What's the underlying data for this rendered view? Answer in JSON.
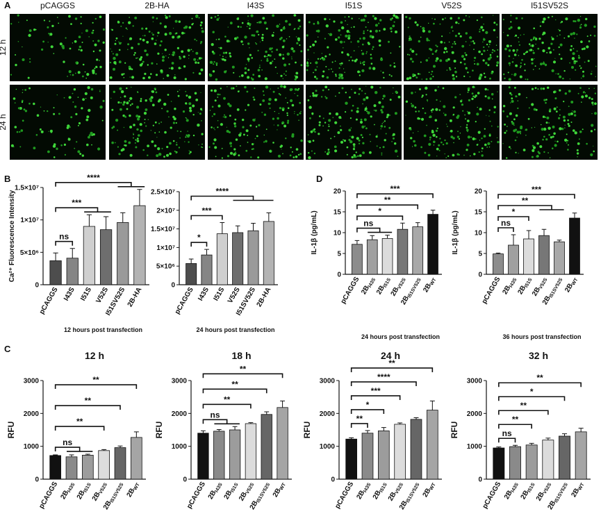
{
  "panel_labels": [
    "A",
    "B",
    "C",
    "D"
  ],
  "panel_a": {
    "columns": [
      "pCAGGS",
      "2B-HA",
      "I43S",
      "I51S",
      "V52S",
      "I51SV52S"
    ],
    "rows": [
      "12 h",
      "24 h"
    ]
  },
  "chart_data": [
    {
      "type": "bar",
      "xlabel": "12 hours post transfection",
      "ylabel": "Ca²⁺ Fluorescence Intensity",
      "categories": [
        "pCAGGS",
        "I43S",
        "I51S",
        "V52S",
        "I51SV52S",
        "2B-HA"
      ],
      "values": [
        3700000,
        4100000,
        9000000,
        8500000,
        9600000,
        12200000
      ],
      "errors": [
        1200000,
        1500000,
        1800000,
        2000000,
        1500000,
        2500000
      ],
      "colors": [
        "#4d4d4d",
        "#858585",
        "#cfcfcf",
        "#6e6e6e",
        "#9a9a9a",
        "#b3b3b3"
      ],
      "ylim": [
        0,
        15000000
      ],
      "yticks": [
        0,
        {
          "value": 5000000,
          "label": "5×10⁶"
        },
        {
          "value": 10000000,
          "label": "1×10⁷"
        },
        {
          "value": 15000000,
          "label": "1.5×10⁷"
        }
      ],
      "significance": [
        {
          "label": "ns",
          "from": "pCAGGS",
          "to": [
            "I43S"
          ]
        },
        {
          "label": "***",
          "from": "pCAGGS",
          "to": [
            "I51S",
            "V52S"
          ]
        },
        {
          "label": "****",
          "from": "pCAGGS",
          "to": [
            "I51SV52S",
            "2B-HA"
          ]
        }
      ]
    },
    {
      "type": "bar",
      "xlabel": "24 hours post transfection",
      "categories": [
        "pCAGGS",
        "I43S",
        "I51S",
        "V52S",
        "I51SV52S",
        "2B-HA"
      ],
      "values": [
        5700000,
        8000000,
        13700000,
        14000000,
        14500000,
        17000000
      ],
      "errors": [
        1200000,
        1500000,
        3000000,
        1800000,
        2000000,
        2300000
      ],
      "colors": [
        "#4d4d4d",
        "#858585",
        "#cfcfcf",
        "#6e6e6e",
        "#9a9a9a",
        "#b3b3b3"
      ],
      "ylim": [
        0,
        25000000
      ],
      "yticks": [
        0,
        {
          "value": 5000000,
          "label": "5×10⁶"
        },
        {
          "value": 10000000,
          "label": "1×10⁷"
        },
        {
          "value": 15000000,
          "label": "1.5×10⁷"
        },
        {
          "value": 20000000,
          "label": "2×10⁷"
        },
        {
          "value": 25000000,
          "label": "2.5×10⁷"
        }
      ],
      "significance": [
        {
          "label": "*",
          "from": "pCAGGS",
          "to": [
            "I43S"
          ]
        },
        {
          "label": "***",
          "from": "pCAGGS",
          "to": [
            "I51S"
          ]
        },
        {
          "label": "****",
          "from": "pCAGGS",
          "to": [
            "V52S",
            "I51SV52S",
            "2B-HA"
          ]
        }
      ]
    },
    {
      "type": "bar",
      "xlabel": "24 hours post transfection",
      "ylabel": "IL-1β (pg/mL)",
      "categories": [
        "pCAGGS",
        "2BI43S",
        "2BI51S",
        "2BV52S",
        "2BI51SV52S",
        "2BWT"
      ],
      "values": [
        7.2,
        8.3,
        8.6,
        10.8,
        11.4,
        14.4
      ],
      "errors": [
        0.9,
        1,
        0.8,
        1.5,
        1,
        1
      ],
      "colors": [
        "#8c8c8c",
        "#a0a0a0",
        "#dcdcdc",
        "#777777",
        "#a8a8a8",
        "#111111"
      ],
      "ylim": [
        0,
        20
      ],
      "yticks": [
        0,
        5,
        10,
        15,
        20
      ],
      "significance": [
        {
          "label": "ns",
          "from": "pCAGGS",
          "to": [
            "2BI43S",
            "2BI51S"
          ]
        },
        {
          "label": "*",
          "from": "pCAGGS",
          "to": [
            "2BV52S"
          ]
        },
        {
          "label": "**",
          "from": "pCAGGS",
          "to": [
            "2BI51SV52S"
          ]
        },
        {
          "label": "***",
          "from": "pCAGGS",
          "to": [
            "2BWT"
          ]
        }
      ]
    },
    {
      "type": "bar",
      "xlabel": "36 hours post transfection",
      "ylabel": "IL-1β (pg/mL)",
      "categories": [
        "pCAGGS",
        "2BI43S",
        "2BI51S",
        "2BV52S",
        "2BI51SV52S",
        "2BWT"
      ],
      "values": [
        4.9,
        7,
        8.5,
        9.3,
        7.8,
        13.5
      ],
      "errors": [
        0.2,
        2.5,
        2,
        1.5,
        0.4,
        1.2
      ],
      "colors": [
        "#8c8c8c",
        "#a0a0a0",
        "#dcdcdc",
        "#777777",
        "#a8a8a8",
        "#111111"
      ],
      "ylim": [
        0,
        20
      ],
      "yticks": [
        0,
        5,
        10,
        15,
        20
      ],
      "significance": [
        {
          "label": "ns",
          "from": "pCAGGS",
          "to": [
            "2BI43S"
          ]
        },
        {
          "label": "*",
          "from": "pCAGGS",
          "to": [
            "2BI51S"
          ]
        },
        {
          "label": "**",
          "from": "pCAGGS",
          "to": [
            "2BV52S",
            "2BI51SV52S"
          ]
        },
        {
          "label": "***",
          "from": "pCAGGS",
          "to": [
            "2BWT"
          ]
        }
      ]
    },
    {
      "type": "bar",
      "title": "12 h",
      "ylabel": "RFU",
      "categories": [
        "pCAGGS",
        "2BI43S",
        "2BI51S",
        "2BV52S",
        "2BI51SV52S",
        "2BWT"
      ],
      "values": [
        720,
        680,
        730,
        870,
        960,
        1270
      ],
      "errors": [
        20,
        60,
        30,
        30,
        50,
        170
      ],
      "colors": [
        "#111111",
        "#8a8a8a",
        "#9c9c9c",
        "#dcdcdc",
        "#666666",
        "#a5a5a5"
      ],
      "ylim": [
        0,
        3000
      ],
      "yticks": [
        0,
        1000,
        2000,
        3000
      ],
      "significance": [
        {
          "label": "ns",
          "from": "pCAGGS",
          "to": [
            "2BI43S",
            "2BI51S"
          ]
        },
        {
          "label": "**",
          "from": "pCAGGS",
          "to": [
            "2BV52S"
          ]
        },
        {
          "label": "**",
          "from": "pCAGGS",
          "to": [
            "2BI51SV52S"
          ]
        },
        {
          "label": "**",
          "from": "pCAGGS",
          "to": [
            "2BWT"
          ]
        }
      ]
    },
    {
      "type": "bar",
      "title": "18 h",
      "ylabel": "RFU",
      "categories": [
        "pCAGGS",
        "2BI43S",
        "2BI51S",
        "2BV52S",
        "2BI51SV52S",
        "2BWT"
      ],
      "values": [
        1400,
        1460,
        1500,
        1690,
        1970,
        2180
      ],
      "errors": [
        70,
        50,
        100,
        30,
        80,
        200
      ],
      "colors": [
        "#111111",
        "#8a8a8a",
        "#9c9c9c",
        "#dcdcdc",
        "#666666",
        "#a5a5a5"
      ],
      "ylim": [
        0,
        3000
      ],
      "yticks": [
        0,
        1000,
        2000,
        3000
      ],
      "significance": [
        {
          "label": "ns",
          "from": "pCAGGS",
          "to": [
            "2BI43S",
            "2BI51S"
          ]
        },
        {
          "label": "**",
          "from": "pCAGGS",
          "to": [
            "2BV52S"
          ]
        },
        {
          "label": "**",
          "from": "pCAGGS",
          "to": [
            "2BI51SV52S"
          ]
        },
        {
          "label": "**",
          "from": "pCAGGS",
          "to": [
            "2BWT"
          ]
        }
      ]
    },
    {
      "type": "bar",
      "title": "24 h",
      "ylabel": "RFU",
      "categories": [
        "pCAGGS",
        "2BI43S",
        "2BI51S",
        "2BV52S",
        "2BI51SV52S",
        "2BWT"
      ],
      "values": [
        1220,
        1400,
        1470,
        1670,
        1820,
        2100
      ],
      "errors": [
        40,
        80,
        100,
        40,
        50,
        280
      ],
      "colors": [
        "#111111",
        "#8a8a8a",
        "#9c9c9c",
        "#dcdcdc",
        "#666666",
        "#a5a5a5"
      ],
      "ylim": [
        0,
        3000
      ],
      "yticks": [
        0,
        1000,
        2000,
        3000
      ],
      "significance": [
        {
          "label": "**",
          "from": "pCAGGS",
          "to": [
            "2BI43S"
          ]
        },
        {
          "label": "*",
          "from": "pCAGGS",
          "to": [
            "2BI51S"
          ]
        },
        {
          "label": "***",
          "from": "pCAGGS",
          "to": [
            "2BV52S"
          ]
        },
        {
          "label": "****",
          "from": "pCAGGS",
          "to": [
            "2BI51SV52S"
          ]
        },
        {
          "label": "**",
          "from": "pCAGGS",
          "to": [
            "2BWT"
          ]
        }
      ]
    },
    {
      "type": "bar",
      "title": "32 h",
      "ylabel": "RFU",
      "categories": [
        "pCAGGS",
        "2BI43S",
        "2BI51S",
        "2BV52S",
        "2BI51SV52S",
        "2BWT"
      ],
      "values": [
        950,
        990,
        1040,
        1190,
        1310,
        1440
      ],
      "errors": [
        30,
        40,
        50,
        60,
        70,
        110
      ],
      "colors": [
        "#111111",
        "#8a8a8a",
        "#9c9c9c",
        "#dcdcdc",
        "#666666",
        "#a5a5a5"
      ],
      "ylim": [
        0,
        3000
      ],
      "yticks": [
        0,
        1000,
        2000,
        3000
      ],
      "significance": [
        {
          "label": "ns",
          "from": "pCAGGS",
          "to": [
            "2BI43S"
          ]
        },
        {
          "label": "**",
          "from": "pCAGGS",
          "to": [
            "2BI51S"
          ]
        },
        {
          "label": "**",
          "from": "pCAGGS",
          "to": [
            "2BV52S"
          ]
        },
        {
          "label": "*",
          "from": "pCAGGS",
          "to": [
            "2BI51SV52S"
          ]
        },
        {
          "label": "**",
          "from": "pCAGGS",
          "to": [
            "2BWT"
          ]
        }
      ]
    }
  ]
}
